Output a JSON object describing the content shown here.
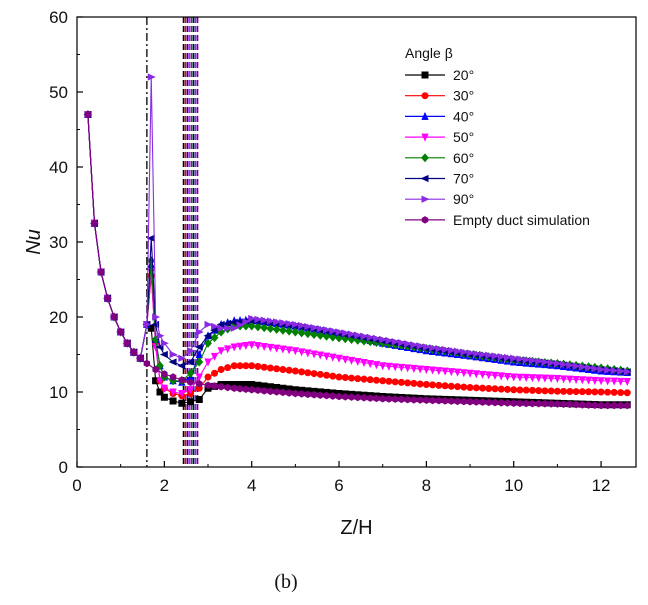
{
  "chart_data": {
    "type": "line",
    "xlabel": "Z/H",
    "ylabel": "Nu",
    "xlim": [
      0,
      12.8
    ],
    "ylim": [
      0,
      60
    ],
    "xticks": [
      0,
      2,
      4,
      6,
      8,
      10,
      12
    ],
    "yticks": [
      0,
      10,
      20,
      30,
      40,
      50,
      60
    ],
    "grid": false,
    "legend_title": "Angle β",
    "legend_position": "top-right",
    "caption": "(b)",
    "reference_lines": [
      {
        "x": 1.6,
        "style": "dash-dot",
        "color": "#000000"
      },
      {
        "x": 2.6,
        "style": "dashed-band",
        "colors": [
          "#000000",
          "#ff0000",
          "#0000ff",
          "#ff00ff",
          "#008000",
          "#000080",
          "#8a2be2",
          "#800080"
        ]
      }
    ],
    "series": [
      {
        "name": "20°",
        "color": "#000000",
        "marker": "square",
        "x": [
          0.25,
          0.4,
          0.55,
          0.7,
          0.85,
          1.0,
          1.15,
          1.3,
          1.45,
          1.6,
          1.7,
          1.8,
          1.9,
          2.0,
          2.2,
          2.4,
          2.6,
          2.8,
          3.0,
          3.3,
          3.6,
          4.0,
          5,
          6,
          7,
          8,
          9,
          10,
          11,
          12,
          12.6
        ],
        "y": [
          47,
          32.5,
          26,
          22.5,
          20,
          18,
          16.5,
          15.3,
          14.5,
          19,
          18.5,
          11.5,
          10,
          9.3,
          8.8,
          8.5,
          8.7,
          9.0,
          10.5,
          11.0,
          11.0,
          11.0,
          10.3,
          9.8,
          9.4,
          9.1,
          8.9,
          8.7,
          8.5,
          8.3,
          8.3
        ]
      },
      {
        "name": "30°",
        "color": "#ff0000",
        "marker": "circle",
        "x": [
          0.25,
          0.4,
          0.55,
          0.7,
          0.85,
          1.0,
          1.15,
          1.3,
          1.45,
          1.6,
          1.7,
          1.8,
          1.9,
          2.0,
          2.2,
          2.4,
          2.6,
          2.8,
          3.0,
          3.3,
          3.6,
          4.0,
          5,
          6,
          7,
          8,
          9,
          10,
          11,
          12,
          12.6
        ],
        "y": [
          47,
          32.5,
          26,
          22.5,
          20,
          18,
          16.5,
          15.3,
          14.5,
          19,
          25.5,
          16.5,
          11.5,
          10.5,
          9.8,
          9.5,
          9.8,
          10.5,
          12.0,
          13.0,
          13.5,
          13.5,
          12.8,
          12.0,
          11.5,
          11.0,
          10.6,
          10.3,
          10.1,
          10.0,
          9.9
        ]
      },
      {
        "name": "40°",
        "color": "#0000ff",
        "marker": "triangle-up",
        "x": [
          0.25,
          0.4,
          0.55,
          0.7,
          0.85,
          1.0,
          1.15,
          1.3,
          1.45,
          1.6,
          1.7,
          1.8,
          1.9,
          2.0,
          2.2,
          2.4,
          2.6,
          2.8,
          3.0,
          3.3,
          3.6,
          4.0,
          5,
          6,
          7,
          8,
          9,
          10,
          11,
          12,
          12.6
        ],
        "y": [
          47,
          32.5,
          26,
          22.5,
          20,
          18,
          16.5,
          15.3,
          14.5,
          19,
          27,
          17,
          13.5,
          12.0,
          11.5,
          11.3,
          12.0,
          15.0,
          17.5,
          19.0,
          19.5,
          19.6,
          18.8,
          17.8,
          16.5,
          15.5,
          14.8,
          14.0,
          13.5,
          12.8,
          12.6
        ]
      },
      {
        "name": "50°",
        "color": "#ff00ff",
        "marker": "triangle-down",
        "x": [
          0.25,
          0.4,
          0.55,
          0.7,
          0.85,
          1.0,
          1.15,
          1.3,
          1.45,
          1.6,
          1.7,
          1.8,
          1.9,
          2.0,
          2.2,
          2.4,
          2.6,
          2.8,
          3.0,
          3.3,
          3.6,
          4.0,
          5,
          6,
          7,
          8,
          9,
          10,
          11,
          12,
          12.6
        ],
        "y": [
          47,
          32.5,
          26,
          22.5,
          20,
          18,
          16.5,
          15.3,
          14.5,
          19,
          26,
          16,
          11.5,
          10.5,
          10.0,
          9.8,
          10.3,
          12.0,
          14.0,
          15.5,
          16.0,
          16.3,
          15.5,
          14.5,
          13.5,
          13.0,
          12.5,
          12.0,
          11.8,
          11.5,
          11.4
        ]
      },
      {
        "name": "60°",
        "color": "#008000",
        "marker": "diamond",
        "x": [
          0.25,
          0.4,
          0.55,
          0.7,
          0.85,
          1.0,
          1.15,
          1.3,
          1.45,
          1.6,
          1.7,
          1.8,
          1.9,
          2.0,
          2.2,
          2.4,
          2.6,
          2.8,
          3.0,
          3.3,
          3.6,
          4.0,
          5,
          6,
          7,
          8,
          9,
          10,
          11,
          12,
          12.6
        ],
        "y": [
          47,
          32.5,
          26,
          22.5,
          20,
          18,
          16.5,
          15.3,
          14.5,
          19,
          27.5,
          17,
          13.5,
          12.0,
          11.5,
          11.5,
          12.5,
          14.0,
          16.5,
          18.0,
          18.8,
          18.8,
          18.0,
          17.2,
          16.5,
          15.8,
          15.0,
          14.3,
          13.8,
          13.2,
          12.8
        ]
      },
      {
        "name": "70°",
        "color": "#000080",
        "marker": "triangle-left",
        "x": [
          0.25,
          0.4,
          0.55,
          0.7,
          0.85,
          1.0,
          1.15,
          1.3,
          1.45,
          1.6,
          1.7,
          1.8,
          1.9,
          2.0,
          2.2,
          2.4,
          2.6,
          2.8,
          3.0,
          3.3,
          3.6,
          4.0,
          5,
          6,
          7,
          8,
          9,
          10,
          11,
          12,
          12.6
        ],
        "y": [
          47,
          32.5,
          26,
          22.5,
          20,
          18,
          16.5,
          15.3,
          14.5,
          19,
          30.5,
          19,
          16,
          15.0,
          14.0,
          13.5,
          14.0,
          16.0,
          17.5,
          19.0,
          19.3,
          19.5,
          18.8,
          17.8,
          16.8,
          15.8,
          15.0,
          14.3,
          13.7,
          13.0,
          12.7
        ]
      },
      {
        "name": "90°",
        "color": "#8a2be2",
        "marker": "triangle-right",
        "x": [
          0.25,
          0.4,
          0.55,
          0.7,
          0.85,
          1.0,
          1.15,
          1.3,
          1.45,
          1.6,
          1.7,
          1.8,
          1.9,
          2.0,
          2.2,
          2.4,
          2.6,
          2.8,
          3.0,
          3.3,
          3.6,
          4.0,
          5,
          6,
          7,
          8,
          9,
          10,
          11,
          12,
          12.6
        ],
        "y": [
          47,
          32.5,
          26,
          22.5,
          20,
          18,
          16.5,
          15.3,
          14.5,
          19,
          52,
          20,
          17.5,
          16.5,
          15.0,
          14.5,
          15.5,
          18.0,
          19.0,
          18.5,
          18.5,
          19.8,
          19.0,
          18.0,
          17.0,
          16.0,
          15.2,
          14.5,
          13.8,
          13.0,
          12.7
        ]
      },
      {
        "name": "Empty duct simulation",
        "color": "#800080",
        "marker": "hexagon",
        "x": [
          0.25,
          0.4,
          0.55,
          0.7,
          0.85,
          1.0,
          1.15,
          1.3,
          1.45,
          1.6,
          1.8,
          2.0,
          2.2,
          2.4,
          2.6,
          2.8,
          3.0,
          3.3,
          3.6,
          4.0,
          5,
          6,
          7,
          8,
          9,
          10,
          11,
          12,
          12.6
        ],
        "y": [
          47,
          32.5,
          26,
          22.5,
          20,
          18,
          16.5,
          15.3,
          14.5,
          13.8,
          13.0,
          12.4,
          12.0,
          11.6,
          11.3,
          11.1,
          10.9,
          10.7,
          10.5,
          10.3,
          9.8,
          9.4,
          9.1,
          8.9,
          8.7,
          8.5,
          8.4,
          8.2,
          8.2
        ]
      }
    ]
  }
}
